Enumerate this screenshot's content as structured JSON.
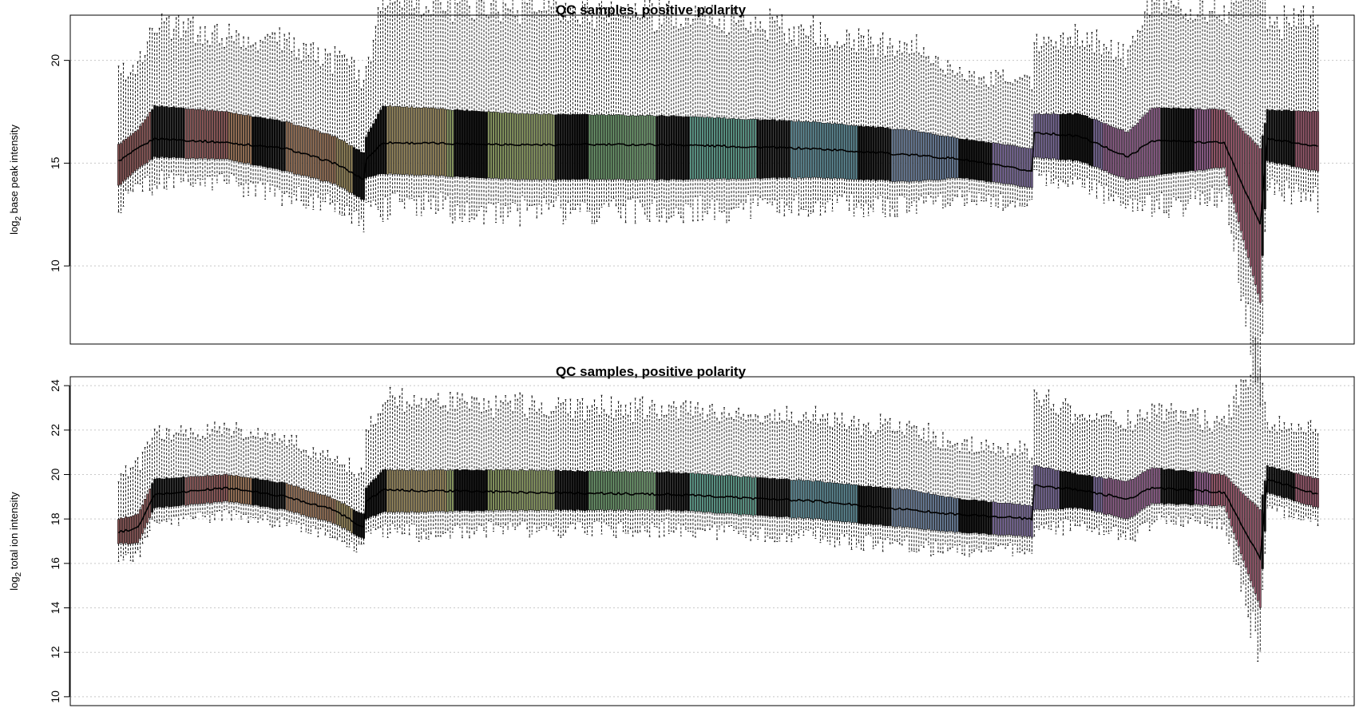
{
  "chart_data": [
    {
      "type": "boxplot",
      "title": "QC samples, positive polarity",
      "ylabel_main": "log",
      "ylabel_sub": "2",
      "ylabel_rest": " base peak intensity",
      "ylim": [
        6.2,
        22.2
      ],
      "yticks": [
        10,
        15,
        20
      ],
      "ytick_labels": [
        "10",
        "15",
        "20"
      ],
      "grid": true,
      "n_samples": 500,
      "profile": [
        [
          0,
          15.9,
          13.9,
          15.1
        ],
        [
          8,
          16.6,
          14.7,
          15.7
        ],
        [
          15,
          17.8,
          15.3,
          16.2
        ],
        [
          45,
          17.5,
          15.2,
          16.0
        ],
        [
          70,
          17.0,
          14.6,
          15.7
        ],
        [
          90,
          16.3,
          14.0,
          15.0
        ],
        [
          102,
          15.5,
          13.2,
          14.2
        ],
        [
          103,
          16.3,
          14.3,
          15.2
        ],
        [
          110,
          17.8,
          14.5,
          16.0
        ],
        [
          170,
          17.4,
          14.2,
          15.9
        ],
        [
          230,
          17.3,
          14.2,
          15.9
        ],
        [
          290,
          17.0,
          14.3,
          15.7
        ],
        [
          330,
          16.6,
          14.1,
          15.4
        ],
        [
          350,
          16.2,
          14.3,
          15.2
        ],
        [
          380,
          15.7,
          13.8,
          14.6
        ],
        [
          381,
          17.4,
          15.3,
          16.5
        ],
        [
          400,
          17.4,
          15.1,
          16.3
        ],
        [
          420,
          16.5,
          14.2,
          15.3
        ],
        [
          430,
          17.7,
          14.4,
          16.1
        ],
        [
          460,
          17.6,
          14.8,
          16.0
        ],
        [
          475,
          15.7,
          8.2,
          12.0
        ],
        [
          478,
          17.6,
          15.1,
          16.2
        ],
        [
          499,
          17.5,
          14.6,
          15.8
        ]
      ],
      "colors": [
        "#8e5a5a",
        "#9a7458",
        "#9a8a5e",
        "#8a9a62",
        "#6e9a6e",
        "#5e9a8a",
        "#608e9a",
        "#6a7e9a",
        "#7a6a9a",
        "#8e5e8a",
        "#9a5a6e"
      ]
    },
    {
      "type": "boxplot",
      "title": "QC samples, positive polarity",
      "ylabel_main": "log",
      "ylabel_sub": "2",
      "ylabel_rest": " total ion intensity",
      "ylim": [
        9.6,
        24.4
      ],
      "yticks": [
        10,
        12,
        14,
        16,
        18,
        20,
        22,
        24
      ],
      "ytick_labels": [
        "10",
        "12",
        "14",
        "16",
        "18",
        "20",
        "22",
        "24"
      ],
      "grid": true,
      "n_samples": 500,
      "profile": [
        [
          0,
          18.0,
          16.9,
          17.4
        ],
        [
          8,
          18.2,
          16.9,
          17.6
        ],
        [
          15,
          19.8,
          18.5,
          19.1
        ],
        [
          45,
          20.0,
          18.8,
          19.4
        ],
        [
          70,
          19.6,
          18.4,
          19.0
        ],
        [
          90,
          18.9,
          17.8,
          18.4
        ],
        [
          102,
          18.2,
          17.1,
          17.6
        ],
        [
          103,
          19.4,
          18.0,
          18.8
        ],
        [
          110,
          20.2,
          18.3,
          19.3
        ],
        [
          170,
          20.2,
          18.4,
          19.2
        ],
        [
          230,
          20.1,
          18.4,
          19.1
        ],
        [
          290,
          19.7,
          18.0,
          18.8
        ],
        [
          330,
          19.3,
          17.6,
          18.4
        ],
        [
          350,
          18.9,
          17.4,
          18.2
        ],
        [
          380,
          18.6,
          17.2,
          18.0
        ],
        [
          381,
          20.4,
          18.4,
          19.5
        ],
        [
          400,
          20.0,
          18.5,
          19.3
        ],
        [
          420,
          19.7,
          18.0,
          18.9
        ],
        [
          430,
          20.3,
          18.7,
          19.4
        ],
        [
          460,
          20.0,
          18.6,
          19.2
        ],
        [
          475,
          18.4,
          14.0,
          16.2
        ],
        [
          478,
          20.4,
          19.2,
          19.8
        ],
        [
          499,
          19.8,
          18.5,
          19.1
        ]
      ],
      "colors": [
        "#8e5a5a",
        "#9a7458",
        "#9a8a5e",
        "#8a9a62",
        "#6e9a6e",
        "#5e9a8a",
        "#608e9a",
        "#6a7e9a",
        "#7a6a9a",
        "#8e5e8a",
        "#9a5a6e"
      ]
    }
  ]
}
